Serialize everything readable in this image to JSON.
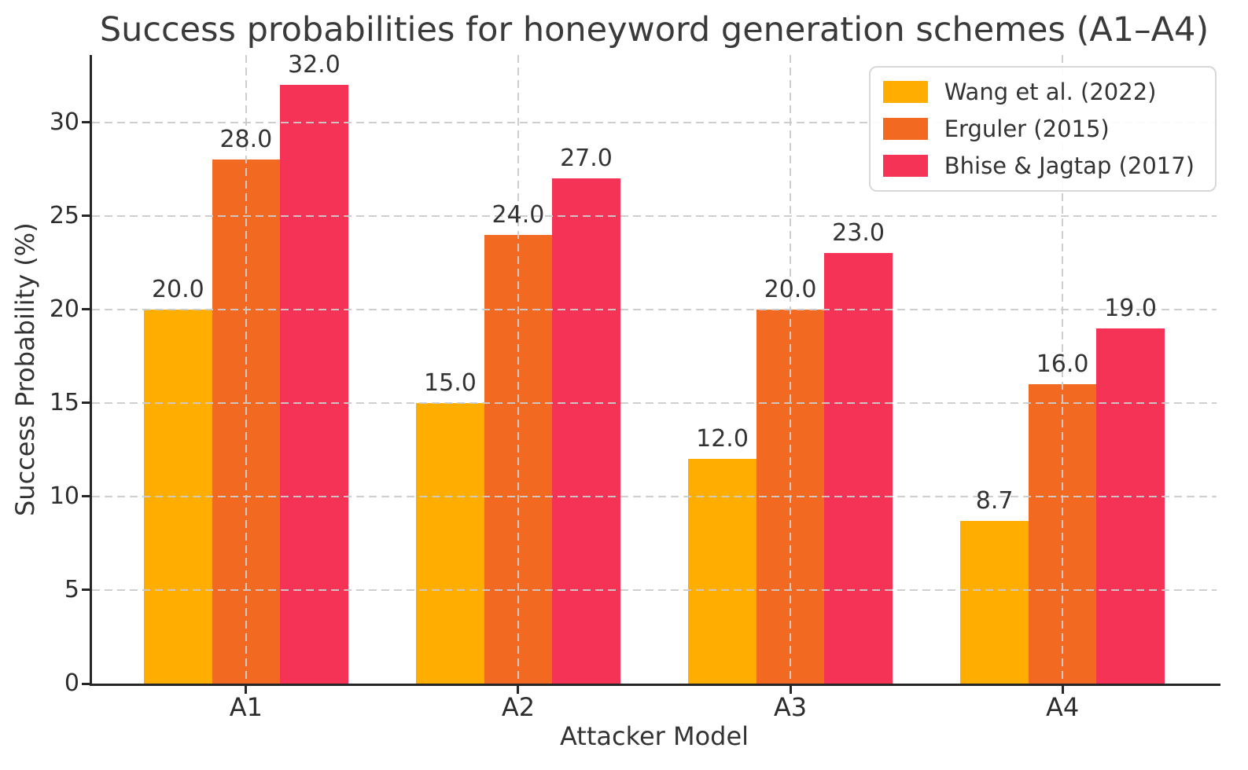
{
  "chart_data": {
    "type": "bar",
    "title": "Success probabilities for honeyword generation schemes (A1–A4)",
    "xlabel": "Attacker Model",
    "ylabel": "Success Probability (%)",
    "categories": [
      "A1",
      "A2",
      "A3",
      "A4"
    ],
    "series": [
      {
        "name": "Wang et al. (2022)",
        "color": "#FFAE00",
        "values": [
          20.0,
          15.0,
          12.0,
          8.7
        ],
        "value_labels": [
          "20.0",
          "15.0",
          "12.0",
          "8.7"
        ]
      },
      {
        "name": "Erguler (2015)",
        "color": "#F26A21",
        "values": [
          28.0,
          24.0,
          20.0,
          16.0
        ],
        "value_labels": [
          "28.0",
          "24.0",
          "20.0",
          "16.0"
        ]
      },
      {
        "name": "Bhise & Jagtap (2017)",
        "color": "#F43356",
        "values": [
          32.0,
          27.0,
          23.0,
          19.0
        ],
        "value_labels": [
          "32.0",
          "27.0",
          "23.0",
          "19.0"
        ]
      }
    ],
    "yticks": [
      0,
      5,
      10,
      15,
      20,
      25,
      30
    ],
    "ylim": [
      0,
      33.6
    ],
    "grid": "dashed gridlines on both axes, drawn above bars",
    "legend_position": "upper right",
    "colors": {
      "text": "#2d2d2d",
      "spine": "#262626",
      "grid": "#cbcbcb",
      "legend_border": "#d8d8d8"
    }
  }
}
